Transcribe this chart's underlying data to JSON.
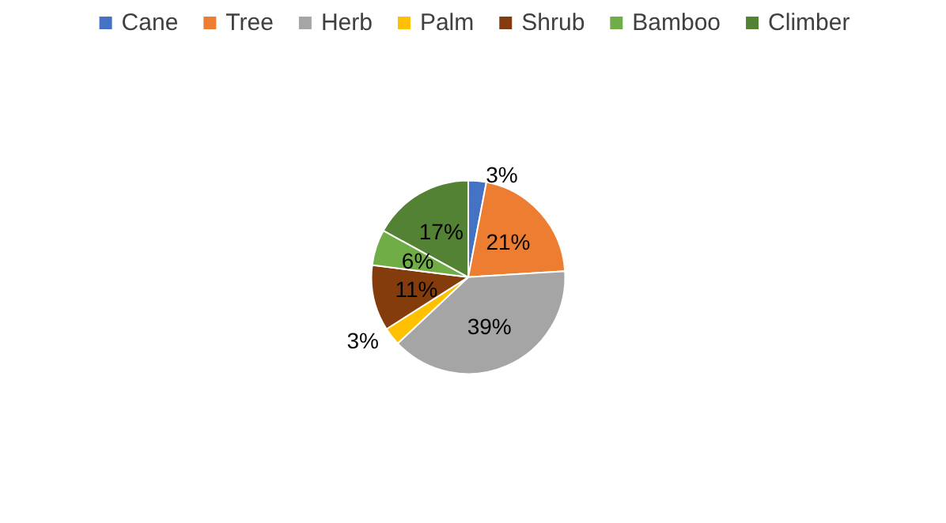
{
  "chart_data": {
    "type": "pie",
    "categories": [
      "Cane",
      "Tree",
      "Herb",
      "Palm",
      "Shrub",
      "Bamboo",
      "Climber"
    ],
    "values": [
      3,
      21,
      39,
      3,
      11,
      6,
      17
    ],
    "value_labels": [
      "3%",
      "21%",
      "39%",
      "3%",
      "11%",
      "6%",
      "17%"
    ],
    "colors": [
      "#4472c4",
      "#ed7d31",
      "#a5a5a5",
      "#ffc000",
      "#843c0c",
      "#70ad47",
      "#548235"
    ],
    "legend": "top"
  }
}
